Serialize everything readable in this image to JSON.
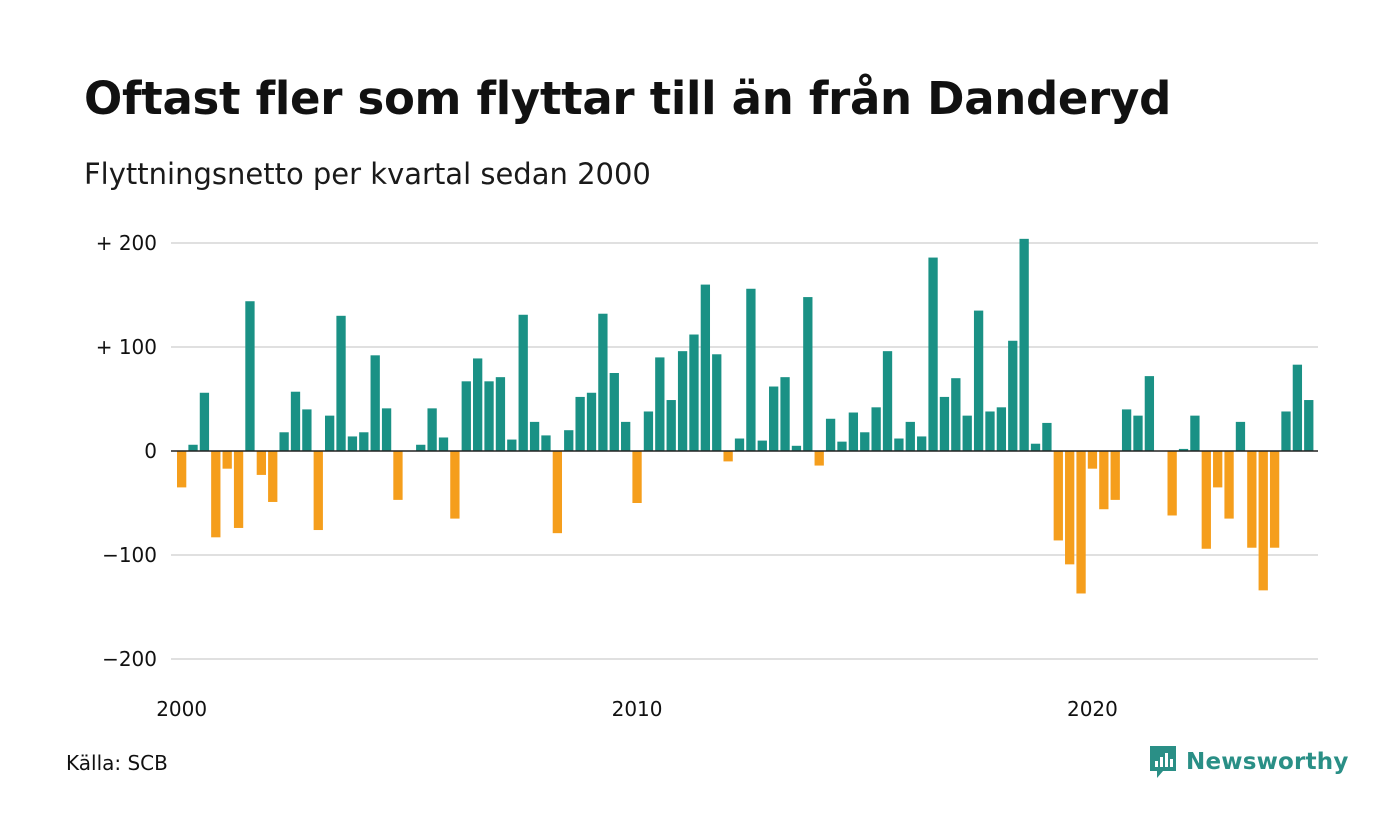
{
  "title": "Oftast fler som flyttar till än från Danderyd",
  "subtitle": "Flyttningsnetto per kvartal sedan 2000",
  "source": "Källa: SCB",
  "brand": "Newsworthy",
  "colors": {
    "positive": "#1a9185",
    "negative": "#f59e1c",
    "grid": "#e0e0e0",
    "brand": "#2a8f86"
  },
  "chart_data": {
    "type": "bar",
    "x_start": "2000 Q1",
    "x_ticks": [
      {
        "index": 0,
        "label": "2000"
      },
      {
        "index": 40,
        "label": "2010"
      },
      {
        "index": 80,
        "label": "2020"
      }
    ],
    "y_ticks": [
      {
        "value": 200,
        "label": "+ 200"
      },
      {
        "value": 100,
        "label": "+ 100"
      },
      {
        "value": 0,
        "label": "0"
      },
      {
        "value": -100,
        "label": "−100"
      },
      {
        "value": -200,
        "label": "−200"
      }
    ],
    "ylim": [
      -200,
      200
    ],
    "grid": true,
    "values": [
      -35,
      6,
      56,
      -83,
      -17,
      -74,
      144,
      -23,
      -49,
      18,
      57,
      40,
      -76,
      34,
      130,
      14,
      18,
      92,
      41,
      -47,
      0,
      6,
      41,
      13,
      -65,
      67,
      89,
      67,
      71,
      11,
      131,
      28,
      15,
      -79,
      20,
      52,
      56,
      132,
      75,
      28,
      -50,
      38,
      90,
      49,
      96,
      112,
      160,
      93,
      -10,
      12,
      156,
      10,
      62,
      71,
      5,
      148,
      -14,
      31,
      9,
      37,
      18,
      42,
      96,
      12,
      28,
      14,
      186,
      52,
      70,
      34,
      135,
      38,
      42,
      106,
      204,
      7,
      27,
      -86,
      -109,
      -137,
      -17,
      -56,
      -47,
      40,
      34,
      72,
      0,
      -62,
      2,
      34,
      -94,
      -35,
      -65,
      28,
      -93,
      -134,
      -93,
      38,
      83,
      49
    ]
  }
}
